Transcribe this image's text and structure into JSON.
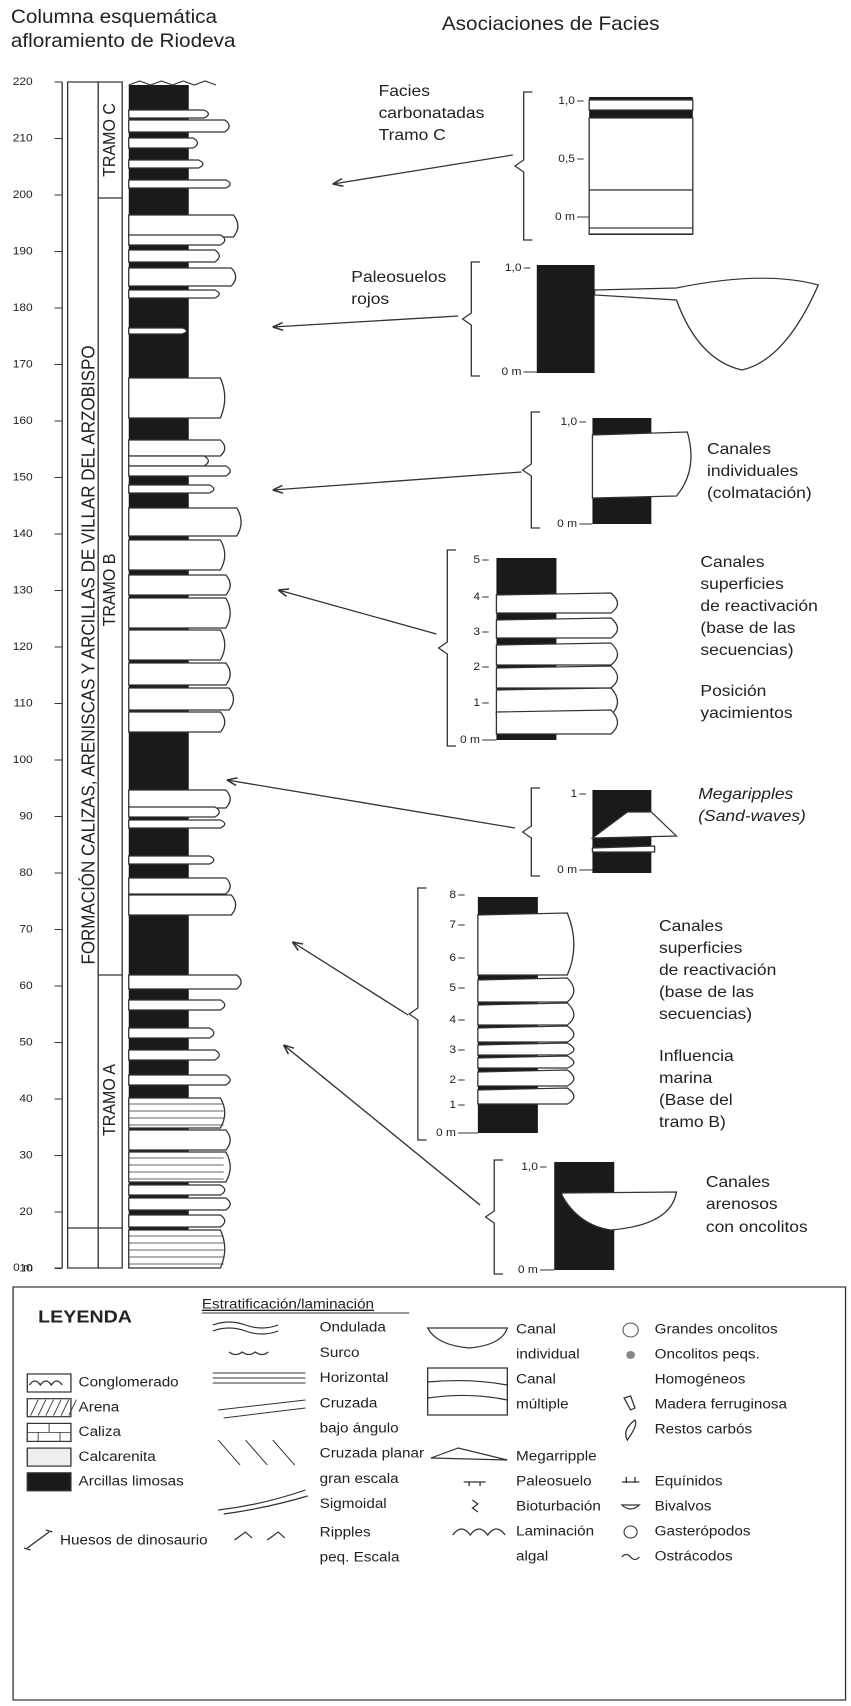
{
  "header": {
    "left_title": [
      "Columna esquemática",
      "afloramiento de Riodeva"
    ],
    "right_title": "Asociaciones de Facies"
  },
  "column": {
    "ticks": [
      "220",
      "210",
      "200",
      "190",
      "180",
      "170",
      "160",
      "150",
      "140",
      "130",
      "120",
      "110",
      "100",
      "90",
      "80",
      "70",
      "60",
      "50",
      "40",
      "30",
      "20",
      "10",
      "0 m"
    ],
    "formation": "FORMACIÓN CALIZAS, ARENISCAS Y ARCILLAS DE VILLAR DEL ARZOBISPO",
    "units": [
      "TRAMO C",
      "TRAMO B",
      "TRAMO A"
    ]
  },
  "facies": [
    {
      "label": [
        "Facies",
        "carbonatadas",
        "Tramo C"
      ],
      "scale": [
        "1,0",
        "0,5",
        "0 m"
      ]
    },
    {
      "label": [
        "Paleosuelos",
        "rojos"
      ],
      "scale": [
        "1,0",
        "0 m"
      ]
    },
    {
      "label": [
        "Canales",
        "individuales",
        "(colmatación)"
      ],
      "scale": [
        "1,0",
        "0 m"
      ]
    },
    {
      "label": [
        "Canales",
        "superficies",
        "de reactivación",
        "(base de las",
        "secuencias)",
        "Posición",
        "yacimientos"
      ],
      "scale": [
        "5",
        "4",
        "3",
        "2",
        "1",
        "0 m"
      ]
    },
    {
      "label": [
        "Megaripples",
        "(Sand-waves)"
      ],
      "scale": [
        "1",
        "0 m"
      ]
    },
    {
      "label": [
        "Canales",
        "superficies",
        "de reactivación",
        "(base de las",
        "secuencias)",
        "Influencia",
        "marina",
        "(Base del",
        "tramo B)"
      ],
      "scale": [
        "8",
        "7",
        "6",
        "5",
        "4",
        "3",
        "2",
        "1",
        "0 m"
      ]
    },
    {
      "label": [
        "Canales",
        "arenosos",
        "con oncolitos"
      ],
      "scale": [
        "1,0",
        "0 m"
      ]
    }
  ],
  "legend": {
    "title": "LEYENDA",
    "lithology": [
      "Conglomerado",
      "Arena",
      "Caliza",
      "Calcarenita",
      "Arcillas limosas"
    ],
    "bones": "Huesos de dinosaurio",
    "structures_title": "Estratificación/laminación",
    "structures": [
      "Ondulada",
      "Surco",
      "Horizontal",
      "Cruzada",
      "bajo ángulo",
      "Cruzada planar",
      "gran escala",
      "Sigmoidal",
      "Ripples",
      "peq. Escala"
    ],
    "features": [
      "Canal",
      "individual",
      "Canal",
      "múltiple",
      "Megarripple",
      "Paleosuelo",
      "Bioturbación",
      "Laminación",
      "algal"
    ],
    "fossils": [
      "Grandes oncolitos",
      "Oncolitos peqs.",
      "Homogéneos",
      "Madera ferruginosa",
      "Restos carbós",
      "Equínidos",
      "Bivalvos",
      "Gasterópodos",
      "Ostrácodos"
    ]
  }
}
